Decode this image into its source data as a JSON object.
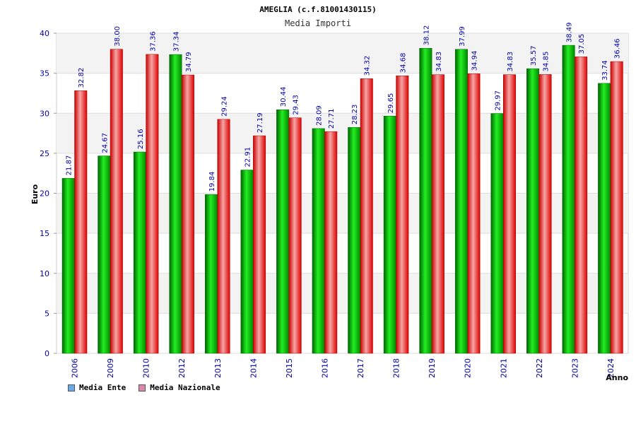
{
  "chart_data": {
    "type": "bar",
    "title": "AMEGLIA (c.f.81001430115)",
    "subtitle": "Media Importi",
    "xlabel": "Anno",
    "ylabel": "Euro",
    "ylim": [
      0,
      40
    ],
    "yticks": [
      0,
      5,
      10,
      15,
      20,
      25,
      30,
      35,
      40
    ],
    "categories": [
      "2006",
      "2009",
      "2010",
      "2012",
      "2013",
      "2014",
      "2015",
      "2016",
      "2017",
      "2018",
      "2019",
      "2020",
      "2021",
      "2022",
      "2023",
      "2024"
    ],
    "series": [
      {
        "name": "Media Ente",
        "color": "#00cc00",
        "values": [
          21.87,
          24.67,
          25.16,
          37.34,
          19.84,
          22.91,
          30.44,
          28.09,
          28.23,
          29.65,
          38.12,
          37.99,
          29.97,
          35.57,
          38.49,
          33.74
        ]
      },
      {
        "name": "Media Nazionale",
        "color": "#ee2222",
        "values": [
          32.82,
          38.0,
          37.36,
          34.79,
          29.24,
          27.19,
          29.43,
          27.71,
          34.32,
          34.68,
          34.83,
          34.94,
          34.83,
          34.85,
          37.05,
          36.46
        ]
      }
    ],
    "legend": [
      {
        "label": "Media Ente",
        "color": "#66aaee"
      },
      {
        "label": "Media Nazionale",
        "color": "#dd88aa"
      }
    ],
    "grid": true
  }
}
